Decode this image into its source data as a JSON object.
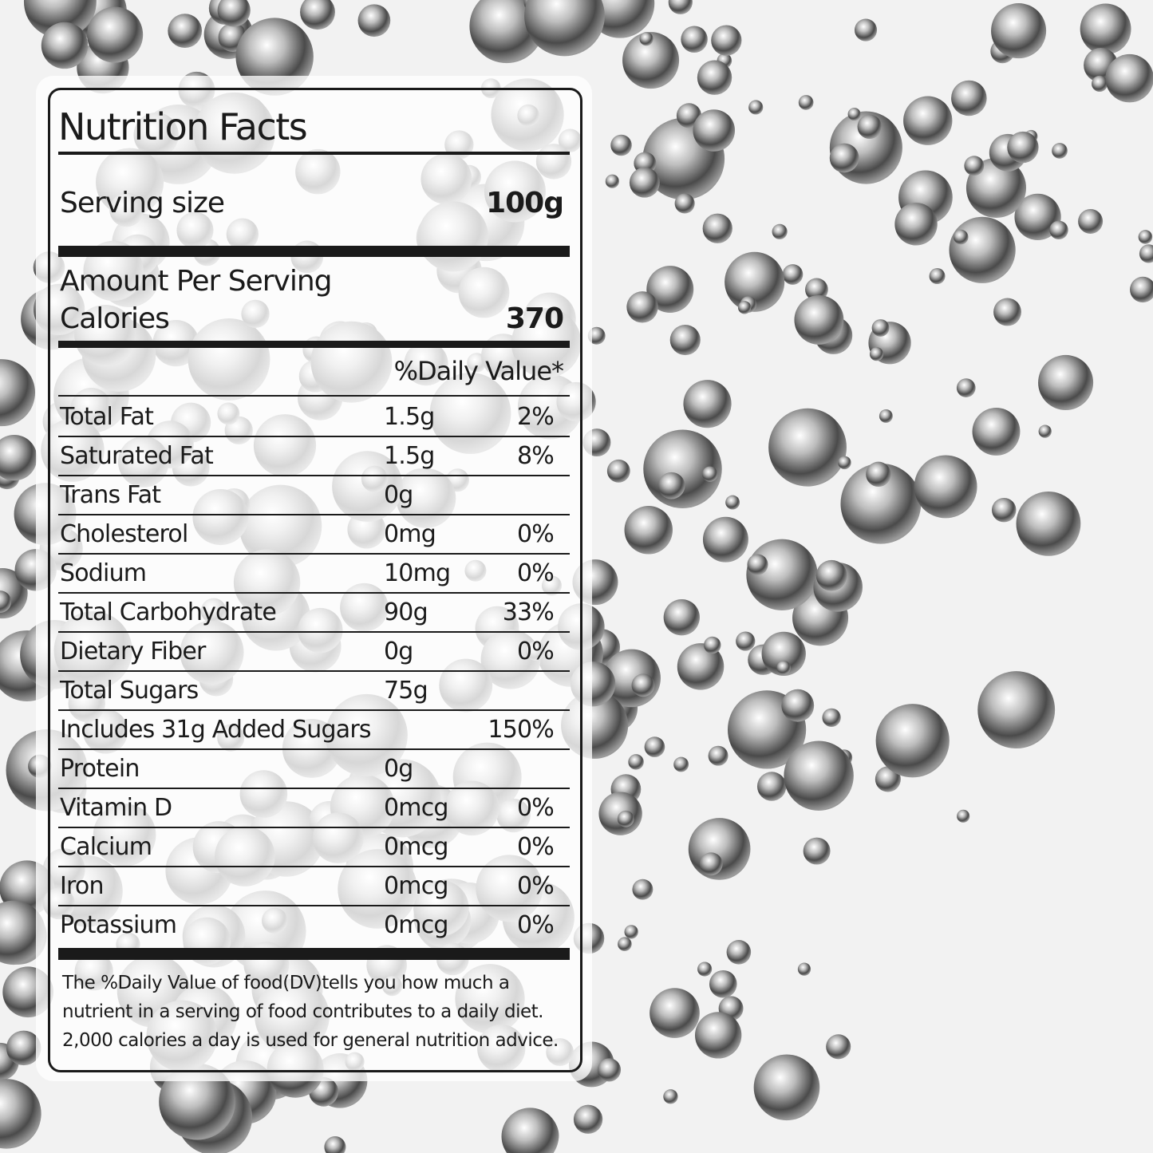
{
  "label": {
    "title": "Nutrition Facts",
    "serving_size_label": "Serving size",
    "serving_size_value": "100g",
    "amount_per_serving": "Amount Per Serving",
    "calories_label": "Calories",
    "calories_value": "370",
    "daily_value_header": "%Daily Value*",
    "nutrients": [
      {
        "name": "Total Fat",
        "amount": "1.5g",
        "dv": "2%"
      },
      {
        "name": "Saturated Fat",
        "amount": "1.5g",
        "dv": "8%"
      },
      {
        "name": "Trans Fat",
        "amount": "0g",
        "dv": ""
      },
      {
        "name": "Cholesterol",
        "amount": "0mg",
        "dv": "0%"
      },
      {
        "name": "Sodium",
        "amount": "10mg",
        "dv": "0%"
      },
      {
        "name": "Total Carbohydrate",
        "amount": "90g",
        "dv": "33%"
      },
      {
        "name": "Dietary Fiber",
        "amount": "0g",
        "dv": "0%"
      },
      {
        "name": "Total Sugars",
        "amount": "75g",
        "dv": ""
      },
      {
        "name": "Includes 31g Added Sugars",
        "amount": "",
        "dv": "150%"
      },
      {
        "name": "Protein",
        "amount": "0g",
        "dv": ""
      },
      {
        "name": "Vitamin D",
        "amount": "0mcg",
        "dv": "0%"
      },
      {
        "name": "Calcium",
        "amount": "0mcg",
        "dv": "0%"
      },
      {
        "name": "Iron",
        "amount": "0mcg",
        "dv": "0%"
      },
      {
        "name": "Potassium",
        "amount": "0mcg",
        "dv": "0%"
      }
    ],
    "footnote_lines": [
      "The %Daily Value of food(DV)tells you how much a",
      "nutrient in a serving of food contributes to a daily diet.",
      "2,000 calories a day is used for general nutrition advice."
    ]
  }
}
